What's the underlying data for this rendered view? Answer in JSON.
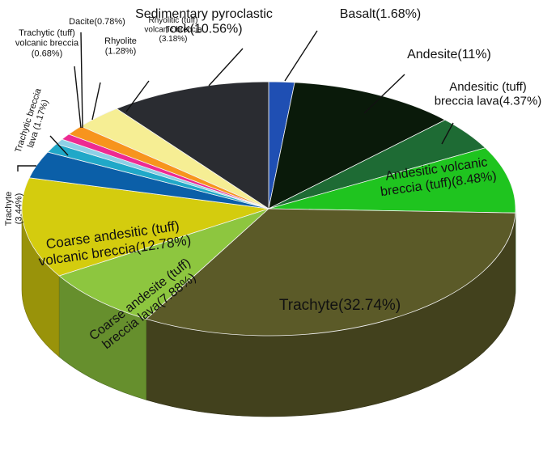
{
  "chart_data": {
    "type": "pie",
    "style": "3d-exploded-free",
    "title": "",
    "unit": "%",
    "slices": [
      {
        "name": "Basalt",
        "value": 1.68,
        "label_lines": [
          "Basalt(1.68%)"
        ],
        "color": "#1f4fb3"
      },
      {
        "name": "Andesite",
        "value": 11,
        "label_lines": [
          "Andesite(11%)"
        ],
        "color": "#0a1a0a"
      },
      {
        "name": "Andesitic (tuff) breccia lava",
        "value": 4.37,
        "label_lines": [
          "Andesitic (tuff)",
          "breccia lava(4.37%)"
        ],
        "color": "#1e6b34"
      },
      {
        "name": "Andesitic volcanic breccia (tuff)",
        "value": 8.48,
        "label_lines": [
          "Andesitic volcanic",
          "breccia (tuff)(8.48%)"
        ],
        "color": "#1fc41f"
      },
      {
        "name": "Trachyte",
        "value": 32.74,
        "label_lines": [
          "Trachyte(32.74%)"
        ],
        "color": "#5b5a28"
      },
      {
        "name": "Coarse andesite (tuff) breccia lava",
        "value": 7.88,
        "label_lines": [
          "Coarse andesite (tuff)",
          "breccia lava(7.88%)"
        ],
        "color": "#8dc63f"
      },
      {
        "name": "Coarse andesitic (tuff) volcanic breccia",
        "value": 12.78,
        "label_lines": [
          "Coarse andesitic (tuff)",
          "volcanic breccia(12.78%)"
        ],
        "color": "#d4cc0e"
      },
      {
        "name": "Trachyte",
        "value": 3.44,
        "label_lines": [
          "Trachyte",
          "(3.44%)"
        ],
        "color": "#0b5fa8"
      },
      {
        "name": "Trachytic breccia lava",
        "value": 1.17,
        "label_lines": [
          "Trachytic breccia",
          "lava (1.17%)"
        ],
        "color": "#20a8c8"
      },
      {
        "name": "Trachytic (tuff) volcanic breccia",
        "value": 0.68,
        "label_lines": [
          "Trachytic (tuff)",
          "volcanic breccia",
          "(0.68%)"
        ],
        "color": "#8ed0e6"
      },
      {
        "name": "Dacite",
        "value": 0.78,
        "label_lines": [
          "Dacite(0.78%)"
        ],
        "color": "#ee2a92"
      },
      {
        "name": "Rhyolite",
        "value": 1.28,
        "label_lines": [
          "Rhyolite",
          "(1.28%)"
        ],
        "color": "#f7941d"
      },
      {
        "name": "Rhyolitic (tuff) volcanic breccia",
        "value": 3.18,
        "label_lines": [
          "Rhyolitic (tuff)",
          "volcanic breccia",
          "(3.18%)"
        ],
        "color": "#f6ee94"
      },
      {
        "name": "Sedimentary pyroclastic rock",
        "value": 10.56,
        "label_lines": [
          "Sedimentary pyroclastic",
          "rock(10.56%)"
        ],
        "color": "#2a2c31"
      }
    ]
  }
}
